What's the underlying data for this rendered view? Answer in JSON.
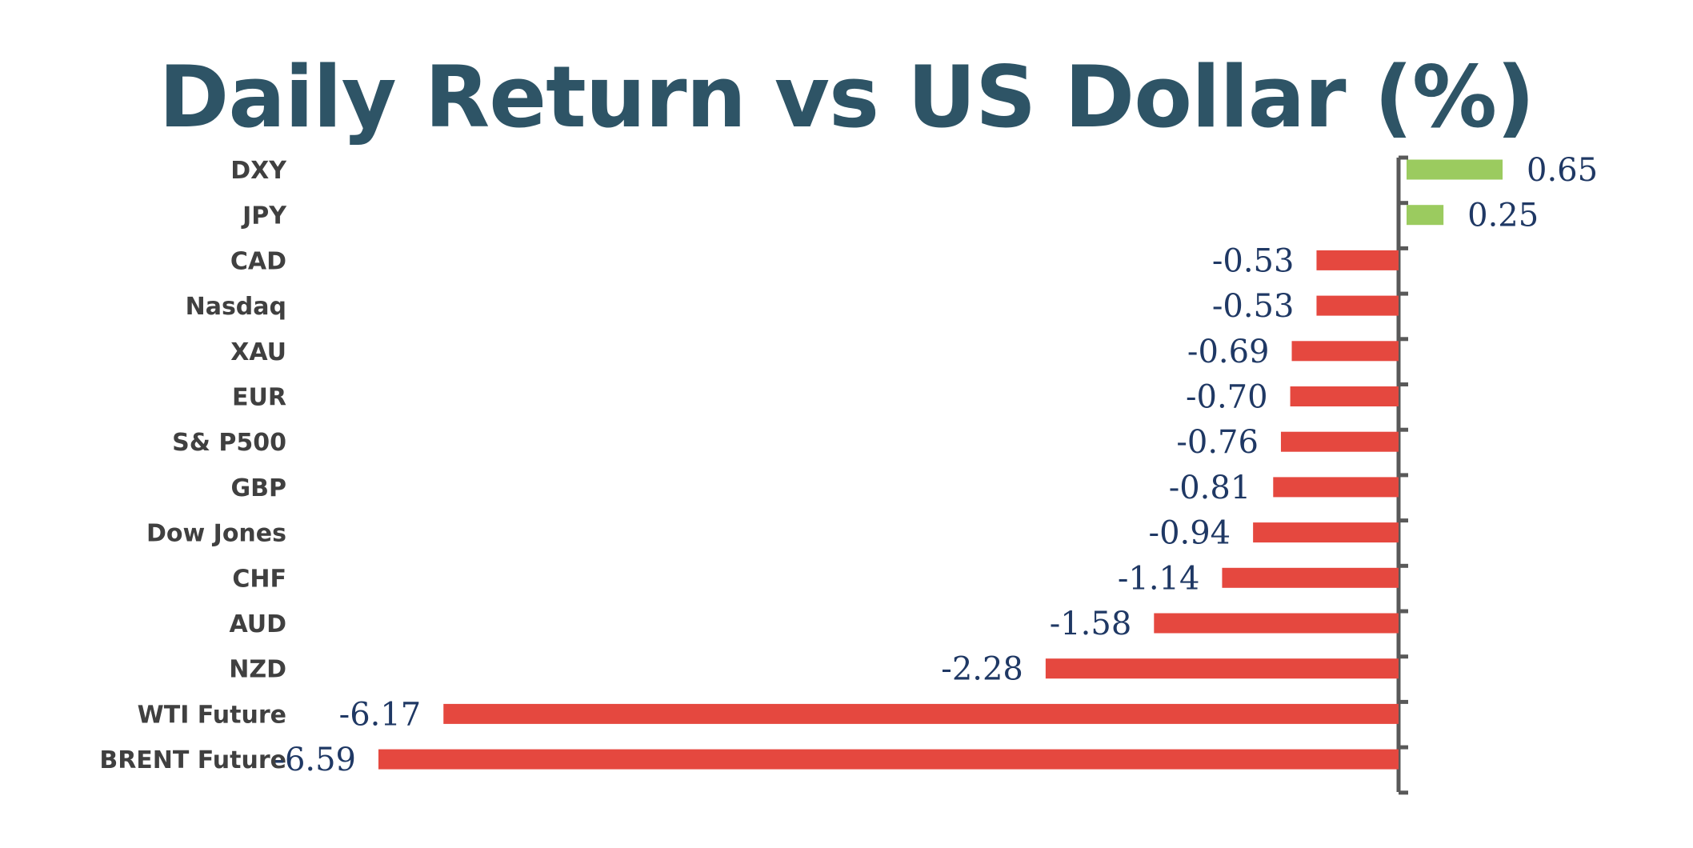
{
  "chart_data": {
    "type": "bar",
    "orientation": "horizontal",
    "title": "Daily Return vs US Dollar (%)",
    "categories": [
      "DXY",
      "JPY",
      "CAD",
      "Nasdaq",
      "XAU",
      "EUR",
      "S& P500",
      "GBP",
      "Dow Jones",
      "CHF",
      "AUD",
      "NZD",
      "WTI Future",
      "BRENT Future"
    ],
    "values": [
      0.65,
      0.25,
      -0.53,
      -0.53,
      -0.69,
      -0.7,
      -0.76,
      -0.81,
      -0.94,
      -1.14,
      -1.58,
      -2.28,
      -6.17,
      -6.59
    ],
    "value_labels": [
      "0.65",
      "0.25",
      "-0.53",
      "-0.53",
      "-0.69",
      "-0.70",
      "-0.76",
      "-0.81",
      "-0.94",
      "-1.14",
      "-1.58",
      "-2.28",
      "-6.17",
      "-6.59"
    ],
    "xlim": [
      -6.59,
      0.65
    ],
    "data_labels": "outside-end",
    "grid": false,
    "legend": "none",
    "colors": {
      "positive": "#9BCB5F",
      "negative": "#E5483F",
      "axis": "#595959",
      "title": "#2E5466",
      "category_label": "#404040",
      "value_label": "#1F3864"
    }
  }
}
